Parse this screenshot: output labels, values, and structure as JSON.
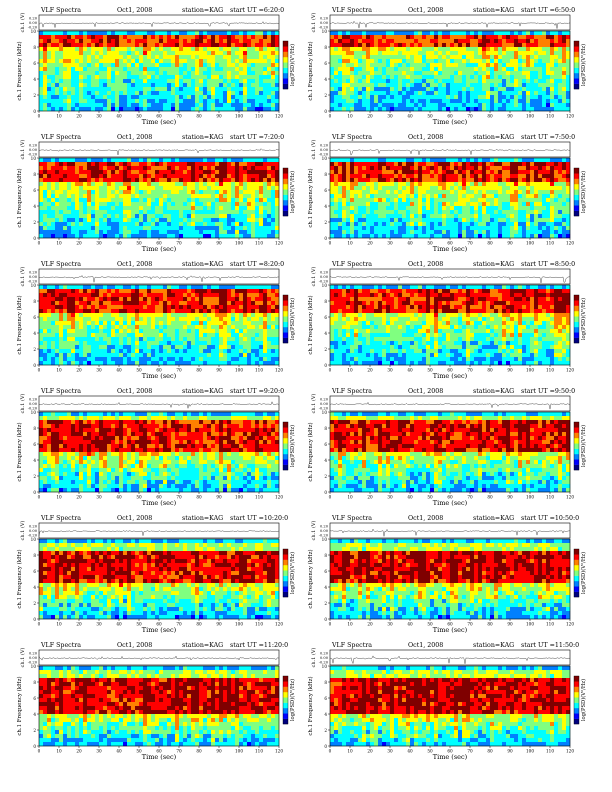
{
  "chart_data": {
    "type": "heatmap",
    "xlabel": "Time (sec)",
    "xlim": [
      0,
      120
    ],
    "x_ticks": [
      "0",
      "10",
      "20",
      "30",
      "40",
      "50",
      "60",
      "70",
      "80",
      "90",
      "100",
      "110",
      "120"
    ],
    "trace_ylabel": "ch.1 (V)",
    "trace_ticks": [
      "0.20",
      "0.00",
      "-0.20"
    ],
    "spec_ylabel": "ch.1 Frequency (kHz)",
    "spec_ylim": [
      0,
      10
    ],
    "spec_ticks": [
      "0",
      "2",
      "4",
      "6",
      "8",
      "10"
    ],
    "colorbar_label": "log(PSD)(V²/Hz)",
    "colormap": [
      "#00007f",
      "#0000ff",
      "#0080ff",
      "#00ffff",
      "#80ff80",
      "#ffff00",
      "#ff8000",
      "#ff0000",
      "#7f0000"
    ],
    "panels": [
      {
        "header": "VLF Spectra",
        "date": "Oct1, 2008",
        "station": "station=KAG",
        "start": "start UT =6:20:0",
        "band_low_kHz": 8.0,
        "band_high_kHz": 9.4,
        "intensity": 0.5
      },
      {
        "header": "VLF Spectra",
        "date": "Oct1, 2008",
        "station": "station=KAG",
        "start": "start UT =6:50:0",
        "band_low_kHz": 8.0,
        "band_high_kHz": 9.4,
        "intensity": 0.55
      },
      {
        "header": "VLF Spectra",
        "date": "Oct1, 2008",
        "station": "station=KAG",
        "start": "start UT =7:20:0",
        "band_low_kHz": 6.8,
        "band_high_kHz": 9.6,
        "intensity": 0.65
      },
      {
        "header": "VLF Spectra",
        "date": "Oct1, 2008",
        "station": "station=KAG",
        "start": "start UT =7:50:0",
        "band_low_kHz": 6.8,
        "band_high_kHz": 9.6,
        "intensity": 0.65
      },
      {
        "header": "VLF Spectra",
        "date": "Oct1, 2008",
        "station": "station=KAG",
        "start": "start UT =8:20:0",
        "band_low_kHz": 6.5,
        "band_high_kHz": 9.4,
        "intensity": 0.68
      },
      {
        "header": "VLF Spectra",
        "date": "Oct1, 2008",
        "station": "station=KAG",
        "start": "start UT =8:50:0",
        "band_low_kHz": 6.5,
        "band_high_kHz": 9.4,
        "intensity": 0.7
      },
      {
        "header": "VLF Spectra",
        "date": "Oct1, 2008",
        "station": "station=KAG",
        "start": "start UT =9:20:0",
        "band_low_kHz": 5.0,
        "band_high_kHz": 9.0,
        "intensity": 0.75
      },
      {
        "header": "VLF Spectra",
        "date": "Oct1, 2008",
        "station": "station=KAG",
        "start": "start UT =9:50:0",
        "band_low_kHz": 5.0,
        "band_high_kHz": 9.0,
        "intensity": 0.78
      },
      {
        "header": "VLF Spectra",
        "date": "Oct1, 2008",
        "station": "station=KAG",
        "start": "start UT =10:20:0",
        "band_low_kHz": 4.5,
        "band_high_kHz": 8.5,
        "intensity": 0.82
      },
      {
        "header": "VLF Spectra",
        "date": "Oct1, 2008",
        "station": "station=KAG",
        "start": "start UT =10:50:0",
        "band_low_kHz": 4.5,
        "band_high_kHz": 8.5,
        "intensity": 0.88
      },
      {
        "header": "VLF Spectra",
        "date": "Oct1, 2008",
        "station": "station=KAG",
        "start": "start UT =11:20:0",
        "band_low_kHz": 4.0,
        "band_high_kHz": 8.5,
        "intensity": 0.9
      },
      {
        "header": "VLF Spectra",
        "date": "Oct1, 2008",
        "station": "station=KAG",
        "start": "start UT =11:50:0",
        "band_low_kHz": 4.0,
        "band_high_kHz": 8.5,
        "intensity": 0.92
      }
    ]
  }
}
